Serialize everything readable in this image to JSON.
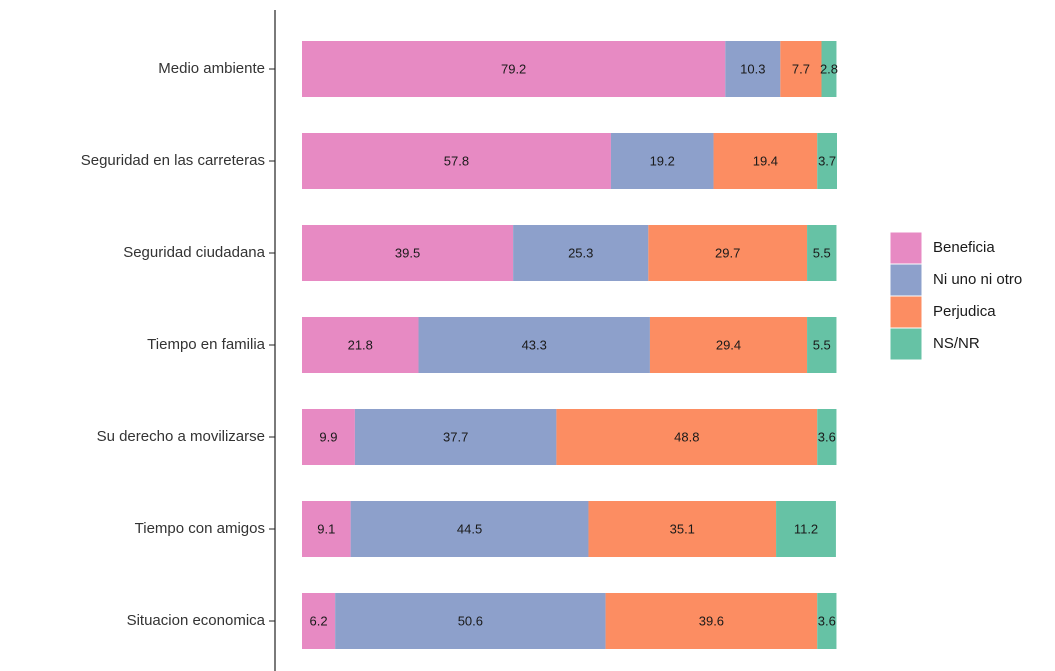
{
  "chart_data": {
    "type": "stacked_bar_horizontal",
    "categories": [
      "Medio ambiente",
      "Seguridad en las carreteras",
      "Seguridad ciudadana",
      "Tiempo en familia",
      "Su derecho a movilizarse",
      "Tiempo con amigos",
      "Situacion economica"
    ],
    "series": [
      {
        "name": "Beneficia",
        "color": "#e78ac3",
        "values": [
          79.2,
          57.8,
          39.5,
          21.8,
          9.9,
          9.1,
          6.2
        ]
      },
      {
        "name": "Ni uno ni otro",
        "color": "#8da0cb",
        "values": [
          10.3,
          19.2,
          25.3,
          43.3,
          37.7,
          44.5,
          50.6
        ]
      },
      {
        "name": "Perjudica",
        "color": "#fc8d62",
        "values": [
          7.7,
          19.4,
          29.7,
          29.4,
          48.8,
          35.1,
          39.6
        ]
      },
      {
        "name": "NS/NR",
        "color": "#66c2a5",
        "values": [
          2.8,
          3.7,
          5.5,
          5.5,
          3.6,
          11.2,
          3.6
        ]
      }
    ],
    "legend": "right"
  }
}
